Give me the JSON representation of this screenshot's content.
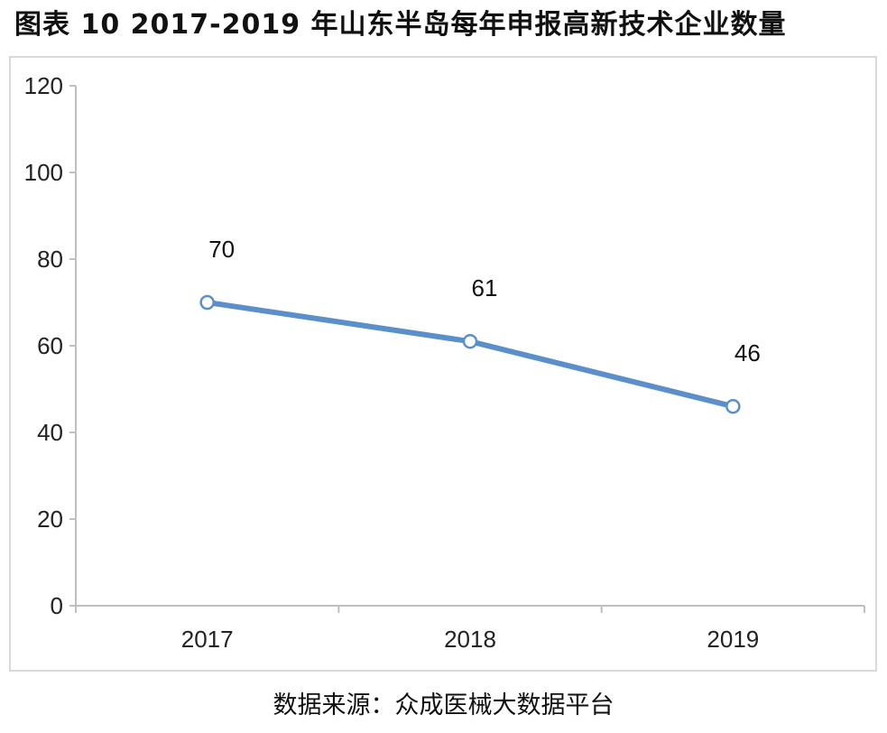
{
  "chart_data": {
    "type": "line",
    "title": "图表 10   2017-2019 年山东半岛每年申报高新技术企业数量",
    "categories": [
      "2017",
      "2018",
      "2019"
    ],
    "series": [
      {
        "values": [
          70,
          61,
          46
        ],
        "color": "#5b8fc9"
      }
    ],
    "data_labels": [
      "70",
      "61",
      "46"
    ],
    "ylim": [
      0,
      120
    ],
    "yticks": [
      0,
      20,
      40,
      60,
      80,
      100,
      120
    ],
    "grid": false,
    "legend": "none"
  },
  "source": "数据来源：众成医械大数据平台"
}
